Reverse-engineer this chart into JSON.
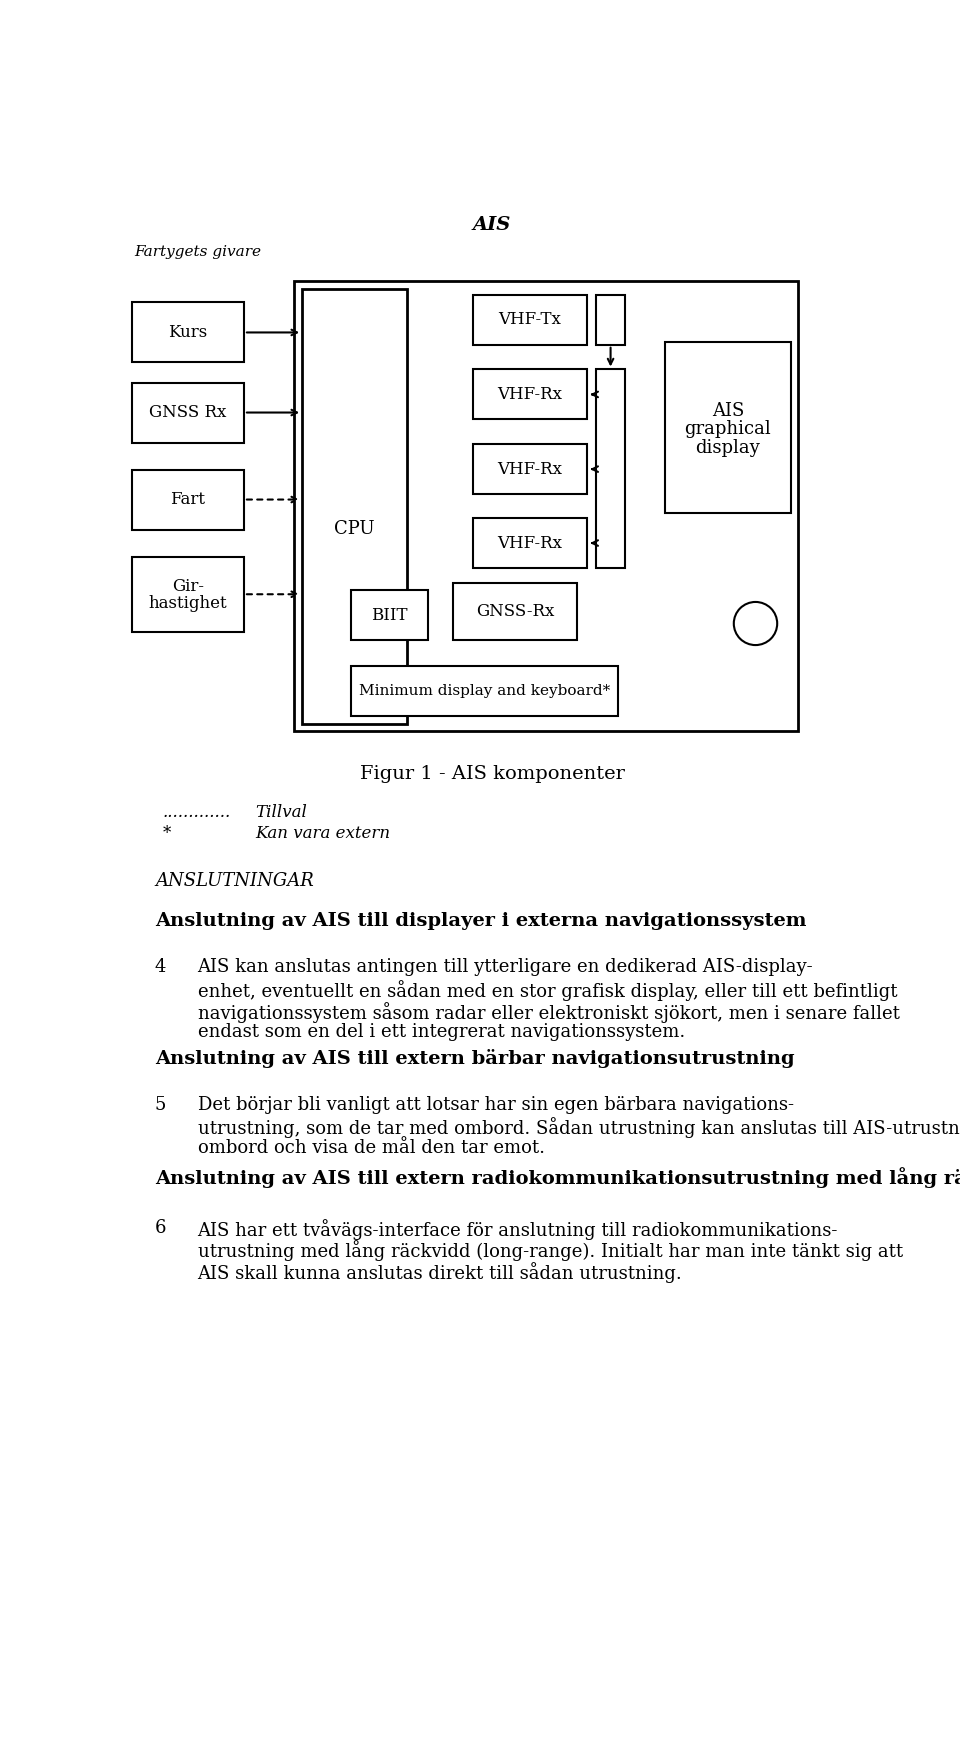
{
  "bg_color": "#ffffff",
  "diagram_title": "AIS",
  "fartygets_givare": "Fartygets givare",
  "figur_caption": "Figur 1 - AIS komponenter",
  "section_label": "ANSLUTNINGAR",
  "heading1": "Anslutning av AIS till displayer i externa navigationssystem",
  "para1_num": "4",
  "para1_lines": [
    "AIS kan anslutas antingen till ytterligare en dedikerad AIS-display-",
    "enhet, eventuellt en sådan med en stor grafisk display, eller till ett befintligt",
    "navigationssystem såsom radar eller elektroniskt sjökort, men i senare fallet",
    "endast som en del i ett integrerat navigationssystem."
  ],
  "heading2": "Anslutning av AIS till extern bärbar navigationsutrustning",
  "para2_num": "5",
  "para2_lines": [
    "Det börjar bli vanligt att lotsar har sin egen bärbara navigations-",
    "utrustning, som de tar med ombord. Sådan utrustning kan anslutas till AIS-utrustningen",
    "ombord och visa de mål den tar emot."
  ],
  "heading3": "Anslutning av AIS till extern radiokommunikationsutrustning med lång räckvidd (long-range)",
  "para3_num": "6",
  "para3_lines": [
    "AIS har ett tvåvägs-interface för anslutning till radiokommunikations-",
    "utrustning med lång räckvidd (long-range). Initialt har man inte tänkt sig att",
    "AIS skall kunna anslutas direkt till sådan utrustning."
  ]
}
